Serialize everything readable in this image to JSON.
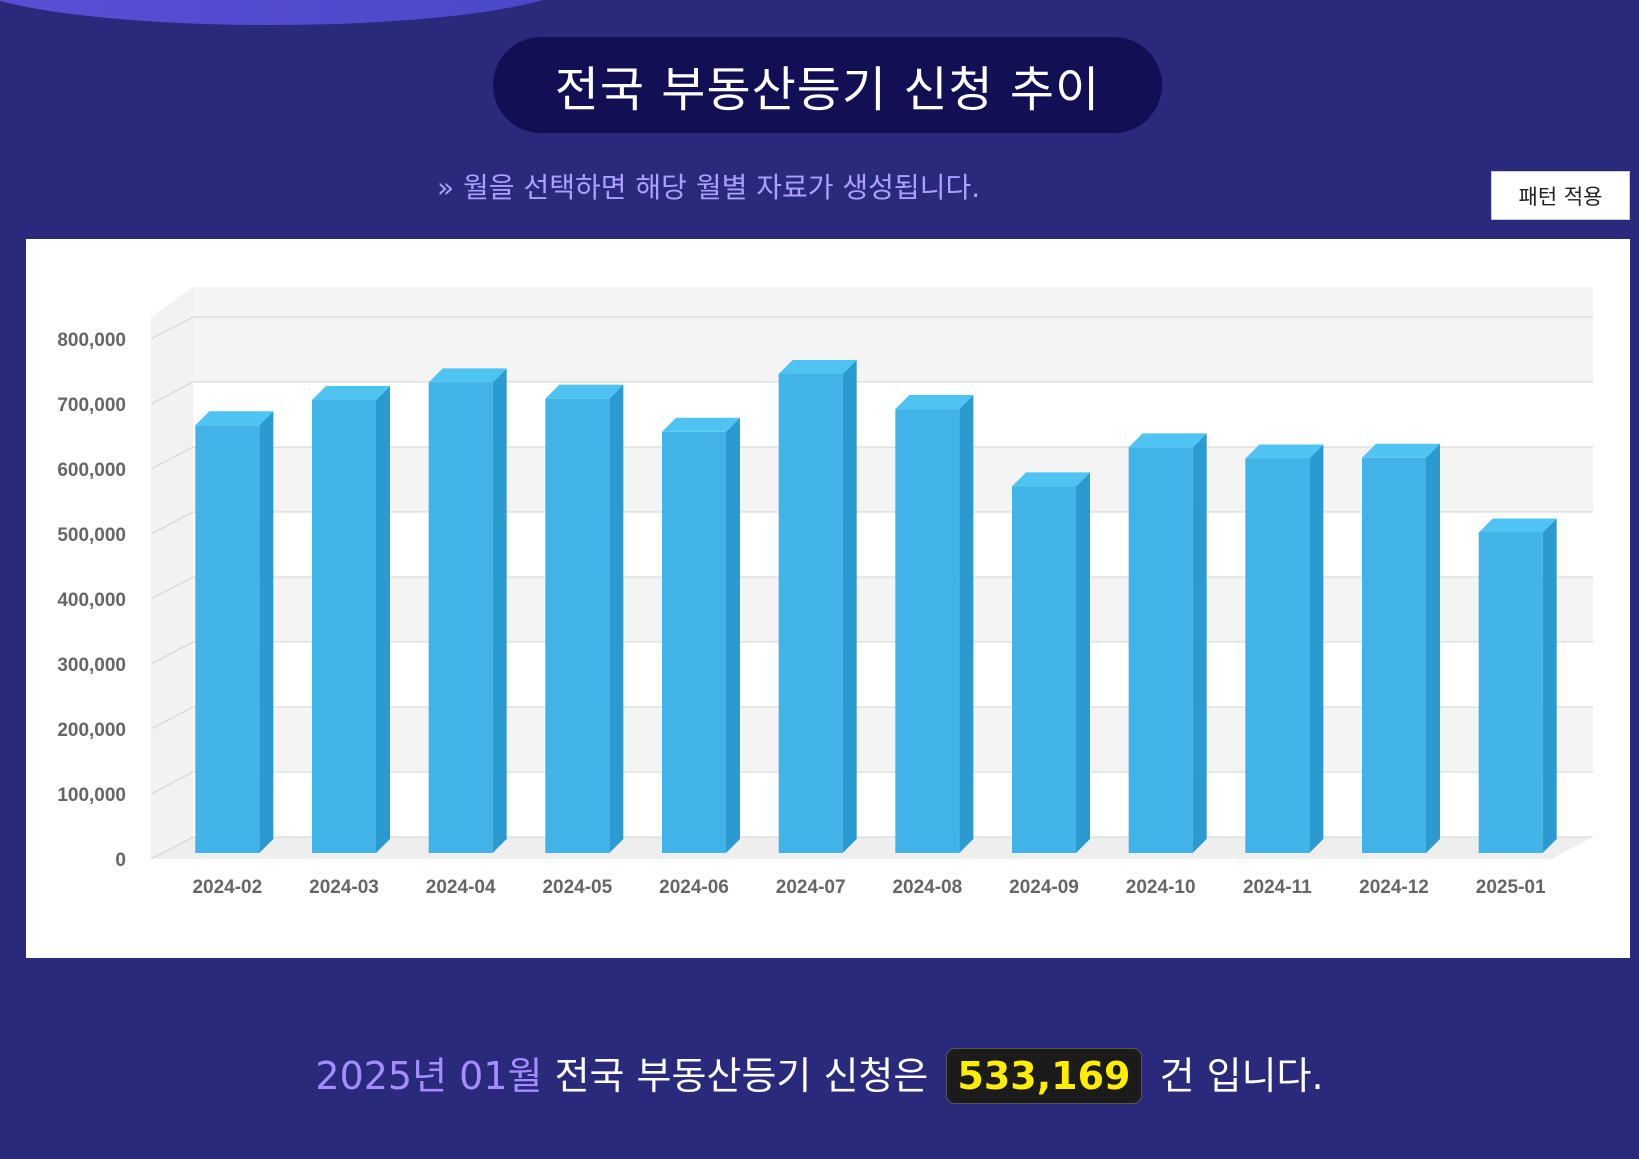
{
  "page": {
    "title": "전국 부동산등기 신청 추이",
    "hint": "» 월을 선택하면 해당 월별 자료가 생성됩니다.",
    "pattern_button": "패턴 적용"
  },
  "summary": {
    "date": "2025년 01월",
    "text_before": "전국 부동산등기 신청은",
    "count": "533,169",
    "text_after": "건 입니다."
  },
  "colors": {
    "background": "#2a2a7c",
    "bar_front": "#42b3e6",
    "bar_top": "#4fc4f3",
    "bar_side": "#2a9ad0",
    "highlight": "#ffee00"
  },
  "chart_data": {
    "type": "bar",
    "title": "전국 부동산등기 신청 추이",
    "categories": [
      "2024-02",
      "2024-03",
      "2024-04",
      "2024-05",
      "2024-06",
      "2024-07",
      "2024-08",
      "2024-09",
      "2024-10",
      "2024-11",
      "2024-12",
      "2025-01"
    ],
    "values": [
      698000,
      737000,
      764000,
      739000,
      688000,
      777000,
      723000,
      604000,
      664000,
      647000,
      648000,
      533169
    ],
    "ylim": [
      0,
      800000
    ],
    "yticks": [
      "0",
      "100,000",
      "200,000",
      "300,000",
      "400,000",
      "500,000",
      "600,000",
      "700,000",
      "800,000"
    ],
    "xlabel": "",
    "ylabel": "",
    "grid": true
  }
}
